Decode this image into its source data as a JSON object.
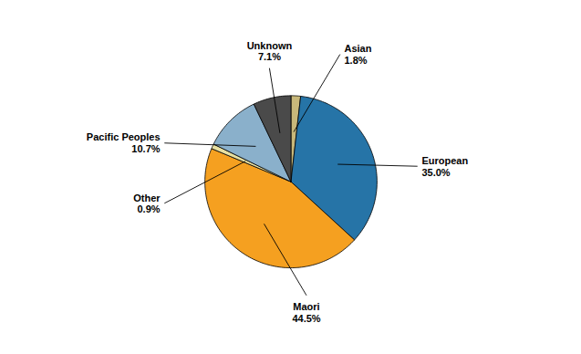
{
  "chart_data": {
    "type": "pie",
    "categories": [
      "Asian",
      "European",
      "Maori",
      "Other",
      "Pacific Peoples",
      "Unknown"
    ],
    "values": [
      1.8,
      35.0,
      44.5,
      0.9,
      10.7,
      7.1
    ],
    "colors": [
      "#c8b87a",
      "#2674a7",
      "#f5a020",
      "#e8e0a0",
      "#8ab0cb",
      "#4a4a4a"
    ],
    "data_labels": true,
    "value_labels": [
      "1.8%",
      "35.0%",
      "44.5%",
      "0.9%",
      "10.7%",
      "7.1%"
    ],
    "tick_labels": false
  }
}
